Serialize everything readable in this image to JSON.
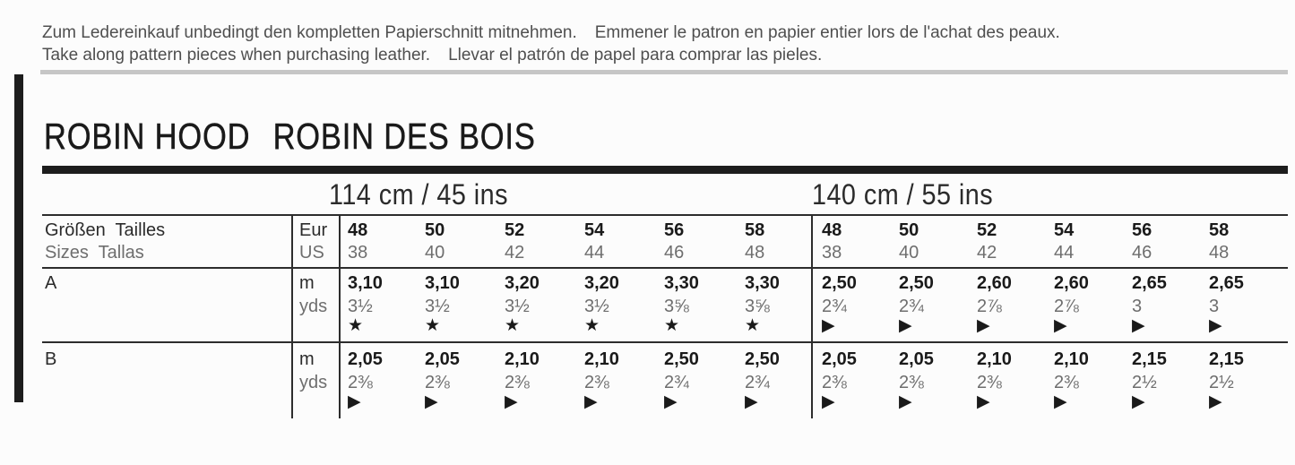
{
  "note": {
    "de": "Zum Ledereinkauf unbedingt den kompletten Papierschnitt mitnehmen.",
    "fr": "Emmener le patron en papier entier lors de l'achat des peaux.",
    "en": "Take along pattern pieces when purchasing leather.",
    "es": "Llevar el patrón de papel para comprar las pieles."
  },
  "title": {
    "part1": "ROBIN HOOD",
    "part2": "ROBIN DES BOIS"
  },
  "table": {
    "fabric_widths": [
      "114 cm / 45 ins",
      "140 cm / 55 ins"
    ],
    "size_header": {
      "de_fr": "Größen  Tailles",
      "en_es": "Sizes  Tallas",
      "unit_top": "Eur",
      "unit_bottom": "US"
    },
    "sizes": {
      "eur": [
        "48",
        "50",
        "52",
        "54",
        "56",
        "58",
        "48",
        "50",
        "52",
        "54",
        "56",
        "58"
      ],
      "us": [
        "38",
        "40",
        "42",
        "44",
        "46",
        "48",
        "38",
        "40",
        "42",
        "44",
        "46",
        "48"
      ]
    },
    "views": [
      {
        "label": "A",
        "unit_top": "m",
        "unit_bottom": "yds",
        "m": [
          "3,10",
          "3,10",
          "3,20",
          "3,20",
          "3,30",
          "3,30",
          "2,50",
          "2,50",
          "2,60",
          "2,60",
          "2,65",
          "2,65"
        ],
        "yds": [
          "3½",
          "3½",
          "3½",
          "3½",
          "3⅝",
          "3⅝",
          "2¾",
          "2¾",
          "2⅞",
          "2⅞",
          "3",
          "3"
        ],
        "symbols": [
          "★",
          "★",
          "★",
          "★",
          "★",
          "★",
          "▶",
          "▶",
          "▶",
          "▶",
          "▶",
          "▶"
        ]
      },
      {
        "label": "B",
        "unit_top": "m",
        "unit_bottom": "yds",
        "m": [
          "2,05",
          "2,05",
          "2,10",
          "2,10",
          "2,50",
          "2,50",
          "2,05",
          "2,05",
          "2,10",
          "2,10",
          "2,15",
          "2,15"
        ],
        "yds": [
          "2⅜",
          "2⅜",
          "2⅜",
          "2⅜",
          "2¾",
          "2¾",
          "2⅜",
          "2⅜",
          "2⅜",
          "2⅜",
          "2½",
          "2½"
        ],
        "symbols": [
          "▶",
          "▶",
          "▶",
          "▶",
          "▶",
          "▶",
          "▶",
          "▶",
          "▶",
          "▶",
          "▶",
          "▶"
        ]
      }
    ]
  },
  "colors": {
    "accent_bar": "#1d1d1d",
    "table_line": "#2d2d2d",
    "divider_gray": "#c6c6c6",
    "text_dark": "#1a1a1a",
    "text_gray": "#6e6e6e"
  }
}
